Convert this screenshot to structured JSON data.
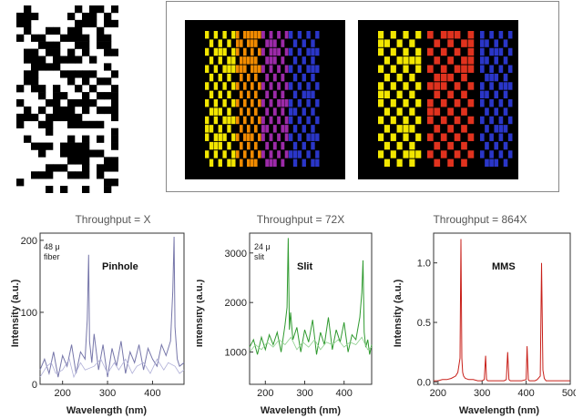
{
  "chart_data": [
    {
      "type": "line",
      "title": "Throughput = X",
      "xlabel": "Wavelength (nm)",
      "ylabel": "Intensity (a.u.)",
      "xlim": [
        150,
        470
      ],
      "ylim": [
        0,
        210
      ],
      "xticks": [
        200,
        300,
        400
      ],
      "yticks": [
        0,
        100,
        200
      ],
      "annotations": [
        "48 μ",
        "fiber"
      ],
      "label": "Pinhole",
      "series": [
        {
          "color": "#7777aa",
          "x": [
            150,
            160,
            170,
            180,
            190,
            200,
            210,
            220,
            230,
            240,
            250,
            255,
            258,
            260,
            265,
            270,
            280,
            290,
            300,
            310,
            320,
            330,
            340,
            350,
            360,
            370,
            380,
            390,
            400,
            410,
            420,
            430,
            440,
            445,
            448,
            450,
            455,
            460,
            470
          ],
          "y": [
            20,
            35,
            15,
            45,
            10,
            40,
            25,
            55,
            15,
            45,
            35,
            90,
            180,
            60,
            30,
            70,
            20,
            55,
            10,
            50,
            25,
            60,
            15,
            45,
            30,
            55,
            20,
            50,
            35,
            25,
            55,
            40,
            60,
            130,
            205,
            80,
            35,
            25,
            30
          ]
        },
        {
          "color": "#b0b0d8",
          "x": [
            150,
            165,
            175,
            185,
            200,
            215,
            225,
            240,
            250,
            270,
            285,
            300,
            315,
            325,
            340,
            355,
            365,
            380,
            395,
            410,
            425,
            435,
            450,
            460,
            470
          ],
          "y": [
            10,
            25,
            30,
            15,
            20,
            35,
            10,
            30,
            20,
            25,
            35,
            15,
            30,
            20,
            35,
            15,
            25,
            30,
            15,
            35,
            20,
            30,
            25,
            15,
            20
          ]
        }
      ]
    },
    {
      "type": "line",
      "title": "Throughput = 72X",
      "xlabel": "Wavelength (nm)",
      "ylabel": "Intensity (a.u.)",
      "xlim": [
        160,
        470
      ],
      "ylim": [
        350,
        3400
      ],
      "xticks": [
        200,
        300,
        400
      ],
      "yticks": [
        1000,
        2000,
        3000
      ],
      "annotations": [
        "24 μ",
        "slit"
      ],
      "label": "Slit",
      "series": [
        {
          "color": "#2f9a2f",
          "x": [
            160,
            170,
            180,
            190,
            200,
            210,
            220,
            230,
            240,
            250,
            255,
            258,
            261,
            264,
            270,
            280,
            290,
            300,
            310,
            320,
            330,
            340,
            350,
            360,
            370,
            380,
            390,
            400,
            410,
            420,
            430,
            440,
            445,
            448,
            451,
            455,
            460,
            465,
            470
          ],
          "y": [
            1100,
            1250,
            950,
            1300,
            1050,
            1350,
            1150,
            1400,
            1000,
            1550,
            1900,
            3300,
            1450,
            1800,
            1250,
            1500,
            1000,
            1450,
            1200,
            1650,
            950,
            1400,
            1150,
            1700,
            1050,
            1450,
            1200,
            1600,
            1000,
            1350,
            1250,
            1700,
            2200,
            2850,
            1400,
            1100,
            1250,
            950,
            1150
          ]
        },
        {
          "color": "#8fd08f",
          "x": [
            160,
            175,
            190,
            205,
            220,
            235,
            250,
            265,
            280,
            295,
            310,
            325,
            340,
            355,
            370,
            385,
            400,
            415,
            430,
            445,
            460,
            470
          ],
          "y": [
            1000,
            1150,
            1050,
            1200,
            1100,
            1250,
            1150,
            1300,
            1050,
            1200,
            1100,
            1250,
            1050,
            1200,
            1150,
            1250,
            1100,
            1200,
            1150,
            1300,
            1050,
            1100
          ]
        }
      ]
    },
    {
      "type": "line",
      "title": "Throughput = 864X",
      "xlabel": "Wavelength (nm)",
      "ylabel": "Intensity (a.u.)",
      "xlim": [
        190,
        500
      ],
      "ylim": [
        -0.02,
        1.25
      ],
      "xticks": [
        200,
        300,
        400,
        500
      ],
      "yticks": [
        0.0,
        0.5,
        1.0
      ],
      "yticklabels": [
        "0.0",
        "0.5",
        "1.0"
      ],
      "label": "MMS",
      "series": [
        {
          "color": "#c8201a",
          "x": [
            190,
            200,
            210,
            220,
            230,
            240,
            245,
            250,
            252,
            254,
            256,
            258,
            262,
            270,
            280,
            290,
            300,
            305,
            308,
            310,
            313,
            320,
            330,
            340,
            350,
            355,
            358,
            361,
            364,
            370,
            380,
            390,
            400,
            402,
            405,
            407,
            410,
            420,
            425,
            432,
            435,
            438,
            441,
            445,
            460,
            480,
            500
          ],
          "y": [
            0.01,
            0.01,
            0.02,
            0.02,
            0.03,
            0.05,
            0.08,
            0.2,
            1.2,
            0.2,
            0.08,
            0.05,
            0.03,
            0.02,
            0.02,
            0.01,
            0.01,
            0.02,
            0.22,
            0.02,
            0.01,
            0.01,
            0.01,
            0.01,
            0.01,
            0.02,
            0.25,
            0.02,
            0.01,
            0.01,
            0.01,
            0.01,
            0.02,
            0.3,
            0.02,
            0.01,
            0.01,
            0.01,
            0.02,
            0.05,
            1.0,
            0.1,
            0.03,
            0.01,
            0.01,
            0.01,
            0.01
          ]
        }
      ]
    }
  ]
}
